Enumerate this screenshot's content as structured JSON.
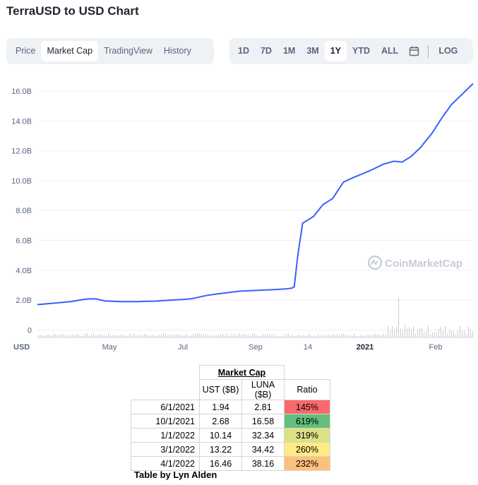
{
  "title": "TerraUSD to USD Chart",
  "view_tabs": [
    {
      "label": "Price",
      "active": false
    },
    {
      "label": "Market Cap",
      "active": true
    },
    {
      "label": "TradingView",
      "active": false
    },
    {
      "label": "History",
      "active": false
    }
  ],
  "range_tabs": [
    {
      "label": "1D",
      "active": false
    },
    {
      "label": "7D",
      "active": false
    },
    {
      "label": "1M",
      "active": false
    },
    {
      "label": "3M",
      "active": false
    },
    {
      "label": "1Y",
      "active": true
    },
    {
      "label": "YTD",
      "active": false
    },
    {
      "label": "ALL",
      "active": false
    }
  ],
  "calendar_icon": "calendar-icon",
  "log_label": "LOG",
  "watermark": "CoinMarketCap",
  "currency_label": "USD",
  "colors": {
    "line": "#3861fb",
    "volume": "#c8ccd4",
    "grid": "#eef0f3"
  },
  "chart_data": {
    "type": "line",
    "ylim": [
      -0.5,
      16.9
    ],
    "y_ticks": [
      0,
      2,
      4,
      6,
      8,
      10,
      12,
      14,
      16
    ],
    "y_tick_labels": [
      "0",
      "2.0B",
      "4.0B",
      "6.0B",
      "8.0B",
      "10.0B",
      "12.0B",
      "14.0B",
      "16.0B"
    ],
    "x_tick_labels": [
      "May",
      "Jul",
      "Sep",
      "14",
      "2021",
      "Feb"
    ],
    "series": [
      {
        "x": [
          "2020-03-12",
          "2020-03-26",
          "2020-04-09",
          "2020-04-16",
          "2020-04-23",
          "2020-04-30",
          "2020-05-07",
          "2020-05-21",
          "2020-06-04",
          "2020-06-11",
          "2020-06-18",
          "2020-07-01",
          "2020-07-12",
          "2020-07-19",
          "2020-07-30",
          "2020-08-07",
          "2020-08-17",
          "2020-08-28",
          "2020-09-10",
          "2020-09-25",
          "2020-10-05",
          "2020-10-10",
          "2020-10-12",
          "2020-10-15",
          "2020-10-19",
          "2020-10-28",
          "2020-11-05",
          "2020-11-13",
          "2020-11-22",
          "2020-11-30",
          "2020-12-06",
          "2020-12-15",
          "2020-12-25",
          "2021-01-03",
          "2021-01-10",
          "2021-01-17",
          "2021-01-25",
          "2021-02-04",
          "2021-02-12",
          "2021-02-20",
          "2021-03-01",
          "2021-03-10"
        ],
        "values": [
          1.7,
          1.8,
          1.9,
          2.0,
          2.08,
          2.08,
          1.95,
          1.9,
          1.9,
          1.92,
          1.93,
          2.0,
          2.05,
          2.1,
          2.3,
          2.4,
          2.5,
          2.6,
          2.65,
          2.7,
          2.75,
          2.8,
          2.9,
          5.0,
          7.15,
          7.6,
          8.4,
          8.8,
          9.9,
          10.2,
          10.4,
          10.7,
          11.1,
          11.3,
          11.25,
          11.6,
          12.2,
          13.2,
          14.2,
          15.1,
          15.8,
          16.5
        ]
      }
    ]
  },
  "table": {
    "group_header": "Market Cap",
    "columns": [
      "UST ($B)",
      "LUNA ($B)",
      "Ratio"
    ],
    "rows": [
      {
        "date": "6/1/2021",
        "ust": "1.94",
        "luna": "2.81",
        "ratio": "145%",
        "color": "#f8696b"
      },
      {
        "date": "10/1/2021",
        "ust": "2.68",
        "luna": "16.58",
        "ratio": "619%",
        "color": "#63be7b"
      },
      {
        "date": "1/1/2022",
        "ust": "10.14",
        "luna": "32.34",
        "ratio": "319%",
        "color": "#dbe283"
      },
      {
        "date": "3/1/2022",
        "ust": "13.22",
        "luna": "34.42",
        "ratio": "260%",
        "color": "#feeb84"
      },
      {
        "date": "4/1/2022",
        "ust": "16.46",
        "luna": "38.16",
        "ratio": "232%",
        "color": "#fdc07c"
      }
    ]
  },
  "credit": "Table by Lyn Alden"
}
